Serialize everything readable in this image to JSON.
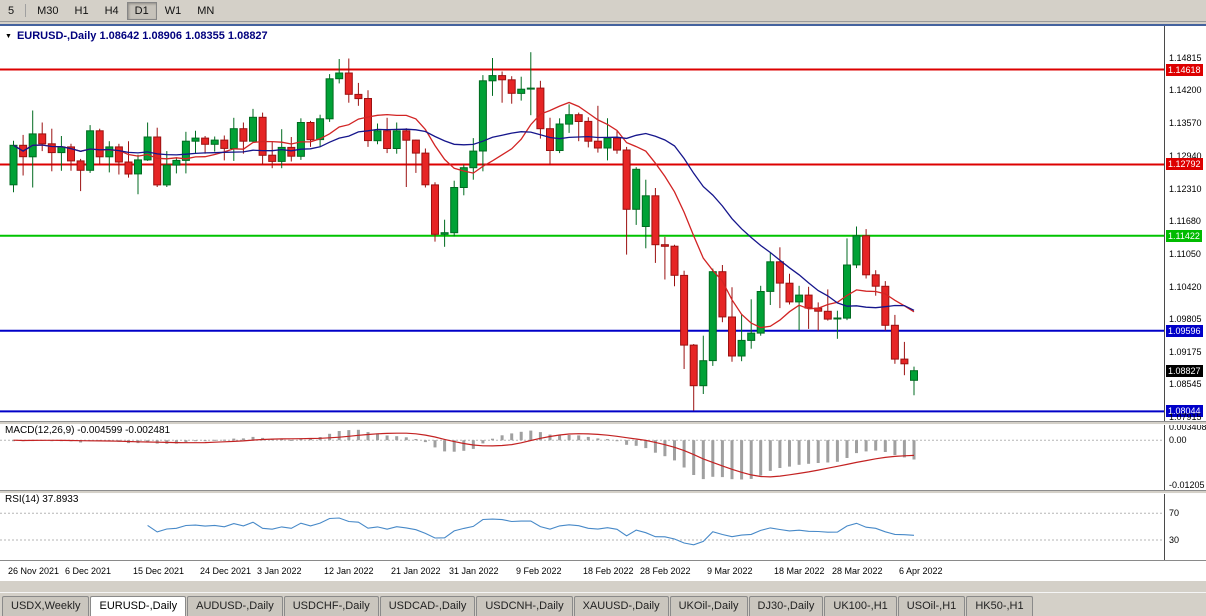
{
  "toolbar": {
    "timeframes": [
      {
        "label": "5",
        "active": false
      },
      {
        "label": "M30",
        "active": false
      },
      {
        "label": "H1",
        "active": false
      },
      {
        "label": "H4",
        "active": false
      },
      {
        "label": "D1",
        "active": true
      },
      {
        "label": "W1",
        "active": false
      },
      {
        "label": "MN",
        "active": false
      }
    ]
  },
  "chart_window": {
    "title": "EURUSD-,Daily  1.08642 1.08906 1.08355 1.08827",
    "menu_icon": "▼"
  },
  "chart_data": {
    "type": "candlestick",
    "symbol": "EURUSD-",
    "period": "Daily",
    "ohlc_display": {
      "open": 1.08642,
      "high": 1.08906,
      "low": 1.08355,
      "close": 1.08827
    },
    "colors": {
      "up_fill": "#00a136",
      "up_stroke": "#006b20",
      "down_fill": "#e62525",
      "down_stroke": "#9b1111",
      "histogram": "#a0a0a0",
      "macd_signal": "#c32222",
      "rsi_line": "#4789c8"
    },
    "price_axis": {
      "max": 1.1507,
      "min": 1.0786,
      "labels": [
        {
          "text": "1.14815",
          "value": 1.14815
        },
        {
          "text": "1.14618",
          "value": 1.14618,
          "bg": "#dd0000"
        },
        {
          "text": "1.14200",
          "value": 1.142
        },
        {
          "text": "1.13570",
          "value": 1.1357
        },
        {
          "text": "1.12940",
          "value": 1.1294
        },
        {
          "text": "1.12792",
          "value": 1.12792,
          "bg": "#dd0000"
        },
        {
          "text": "1.12310",
          "value": 1.1231
        },
        {
          "text": "1.11680",
          "value": 1.1168
        },
        {
          "text": "1.11422",
          "value": 1.11422,
          "bg": "#00bb00"
        },
        {
          "text": "1.11050",
          "value": 1.1105
        },
        {
          "text": "1.10420",
          "value": 1.1042
        },
        {
          "text": "1.09805",
          "value": 1.09805
        },
        {
          "text": "1.09596",
          "value": 1.09596,
          "bg": "#0000c8"
        },
        {
          "text": "1.09175",
          "value": 1.09175
        },
        {
          "text": "1.08827",
          "value": 1.08827,
          "bg": "#000000"
        },
        {
          "text": "1.08545",
          "value": 1.08545
        },
        {
          "text": "1.08044",
          "value": 1.08044,
          "bg": "#0000c8"
        },
        {
          "text": "1.07915",
          "value": 1.07915
        }
      ]
    },
    "levels": [
      {
        "price": 1.14618,
        "color": "#dd0000"
      },
      {
        "price": 1.12792,
        "color": "#dd0000"
      },
      {
        "price": 1.11422,
        "color": "#00c400"
      },
      {
        "price": 1.09596,
        "color": "#0000c8"
      },
      {
        "price": 1.08044,
        "color": "#0000c8"
      }
    ],
    "moving_averages": [
      {
        "period": 10,
        "color": "#d22424"
      },
      {
        "period": 21,
        "color": "#16168c"
      }
    ],
    "candles": [
      [
        1.124,
        1.1325,
        1.1226,
        1.1316
      ],
      [
        1.1316,
        1.1336,
        1.1258,
        1.1294
      ],
      [
        1.1294,
        1.1383,
        1.1235,
        1.1338
      ],
      [
        1.1338,
        1.136,
        1.1305,
        1.1319
      ],
      [
        1.1319,
        1.1348,
        1.1266,
        1.1302
      ],
      [
        1.1302,
        1.1334,
        1.1267,
        1.1313
      ],
      [
        1.1313,
        1.1319,
        1.1267,
        1.1286
      ],
      [
        1.1286,
        1.129,
        1.1228,
        1.1268
      ],
      [
        1.1268,
        1.1355,
        1.1263,
        1.1344
      ],
      [
        1.1344,
        1.1348,
        1.128,
        1.1294
      ],
      [
        1.1294,
        1.1324,
        1.1264,
        1.1313
      ],
      [
        1.1313,
        1.1319,
        1.126,
        1.1284
      ],
      [
        1.1284,
        1.1324,
        1.1254,
        1.1261
      ],
      [
        1.1261,
        1.1298,
        1.1222,
        1.1288
      ],
      [
        1.1288,
        1.136,
        1.1286,
        1.1332
      ],
      [
        1.1332,
        1.135,
        1.1236,
        1.124
      ],
      [
        1.124,
        1.1305,
        1.1236,
        1.1278
      ],
      [
        1.1278,
        1.1293,
        1.1262,
        1.1287
      ],
      [
        1.1287,
        1.1342,
        1.1262,
        1.1324
      ],
      [
        1.1324,
        1.1344,
        1.13,
        1.133
      ],
      [
        1.133,
        1.1334,
        1.13,
        1.1318
      ],
      [
        1.1318,
        1.1333,
        1.1304,
        1.1326
      ],
      [
        1.1326,
        1.1335,
        1.1287,
        1.131
      ],
      [
        1.131,
        1.1369,
        1.1286,
        1.1348
      ],
      [
        1.1348,
        1.136,
        1.13,
        1.1324
      ],
      [
        1.1324,
        1.1386,
        1.1321,
        1.137
      ],
      [
        1.137,
        1.1379,
        1.1279,
        1.1297
      ],
      [
        1.1297,
        1.1323,
        1.1272,
        1.1285
      ],
      [
        1.1285,
        1.1347,
        1.1272,
        1.1312
      ],
      [
        1.1312,
        1.1332,
        1.1285,
        1.1295
      ],
      [
        1.1295,
        1.1368,
        1.1288,
        1.136
      ],
      [
        1.136,
        1.1363,
        1.1313,
        1.1327
      ],
      [
        1.1327,
        1.1375,
        1.1314,
        1.1367
      ],
      [
        1.1367,
        1.1453,
        1.1361,
        1.1444
      ],
      [
        1.1444,
        1.1482,
        1.1435,
        1.1455
      ],
      [
        1.1455,
        1.1483,
        1.1398,
        1.1414
      ],
      [
        1.1414,
        1.1436,
        1.1392,
        1.1406
      ],
      [
        1.1406,
        1.1422,
        1.1313,
        1.1325
      ],
      [
        1.1325,
        1.1358,
        1.1318,
        1.1344
      ],
      [
        1.1344,
        1.1369,
        1.1301,
        1.131
      ],
      [
        1.131,
        1.136,
        1.13,
        1.1344
      ],
      [
        1.1344,
        1.1349,
        1.1236,
        1.1326
      ],
      [
        1.1326,
        1.1327,
        1.1263,
        1.1301
      ],
      [
        1.1301,
        1.131,
        1.1235,
        1.124
      ],
      [
        1.124,
        1.1245,
        1.1131,
        1.1145
      ],
      [
        1.1145,
        1.1173,
        1.1121,
        1.1148
      ],
      [
        1.1148,
        1.1248,
        1.1141,
        1.1235
      ],
      [
        1.1235,
        1.1279,
        1.122,
        1.1273
      ],
      [
        1.1273,
        1.133,
        1.125,
        1.1305
      ],
      [
        1.1305,
        1.1451,
        1.1266,
        1.144
      ],
      [
        1.144,
        1.1484,
        1.1411,
        1.145
      ],
      [
        1.145,
        1.1458,
        1.1398,
        1.1442
      ],
      [
        1.1442,
        1.1449,
        1.1396,
        1.1416
      ],
      [
        1.1416,
        1.1448,
        1.1402,
        1.1424
      ],
      [
        1.1424,
        1.1495,
        1.1374,
        1.1426
      ],
      [
        1.1426,
        1.144,
        1.1329,
        1.1348
      ],
      [
        1.1348,
        1.1369,
        1.1278,
        1.1306
      ],
      [
        1.1306,
        1.1368,
        1.1301,
        1.1357
      ],
      [
        1.1357,
        1.1395,
        1.134,
        1.1375
      ],
      [
        1.1375,
        1.1379,
        1.1324,
        1.1362
      ],
      [
        1.1362,
        1.137,
        1.1312,
        1.1324
      ],
      [
        1.1324,
        1.1392,
        1.1302,
        1.1311
      ],
      [
        1.1311,
        1.1368,
        1.1287,
        1.133
      ],
      [
        1.133,
        1.1344,
        1.13,
        1.1307
      ],
      [
        1.1307,
        1.1313,
        1.1106,
        1.1193
      ],
      [
        1.1193,
        1.1274,
        1.1163,
        1.127
      ],
      [
        1.116,
        1.125,
        1.1118,
        1.1219
      ],
      [
        1.1219,
        1.1234,
        1.109,
        1.1125
      ],
      [
        1.1125,
        1.114,
        1.1058,
        1.1122
      ],
      [
        1.1122,
        1.1125,
        1.1045,
        1.1066
      ],
      [
        1.1066,
        1.1075,
        1.0886,
        1.0932
      ],
      [
        1.0932,
        1.0934,
        1.0806,
        1.0854
      ],
      [
        1.0854,
        1.095,
        1.0838,
        1.0902
      ],
      [
        1.0902,
        1.1079,
        1.0892,
        1.1073
      ],
      [
        1.1073,
        1.1086,
        1.0976,
        1.0986
      ],
      [
        1.0986,
        1.1043,
        1.09,
        1.0911
      ],
      [
        1.0911,
        1.0992,
        1.0901,
        1.0941
      ],
      [
        1.0941,
        1.102,
        1.0925,
        1.0955
      ],
      [
        1.0955,
        1.1046,
        1.095,
        1.1035
      ],
      [
        1.1035,
        1.1109,
        1.1009,
        1.1092
      ],
      [
        1.1092,
        1.112,
        1.1003,
        1.1051
      ],
      [
        1.1051,
        1.1069,
        1.101,
        1.1015
      ],
      [
        1.1015,
        1.1046,
        1.0961,
        1.1028
      ],
      [
        1.1028,
        1.1044,
        1.0963,
        1.1003
      ],
      [
        1.1003,
        1.1014,
        1.096,
        1.0997
      ],
      [
        1.0997,
        1.1039,
        1.0979,
        1.0982
      ],
      [
        1.0982,
        1.0998,
        1.0944,
        1.0984
      ],
      [
        1.0984,
        1.1137,
        1.098,
        1.1086
      ],
      [
        1.1086,
        1.116,
        1.108,
        1.1142
      ],
      [
        1.1142,
        1.1155,
        1.106,
        1.1067
      ],
      [
        1.1067,
        1.1076,
        1.1027,
        1.1045
      ],
      [
        1.1045,
        1.1055,
        1.096,
        1.097
      ],
      [
        1.097,
        1.099,
        1.0896,
        1.0905
      ],
      [
        1.0905,
        1.0938,
        1.0874,
        1.0896
      ],
      [
        1.08642,
        1.08906,
        1.08355,
        1.08827
      ]
    ],
    "date_axis": [
      {
        "label": "26 Nov 2021",
        "bar": 0
      },
      {
        "label": "6 Dec 2021",
        "bar": 6
      },
      {
        "label": "15 Dec 2021",
        "bar": 13
      },
      {
        "label": "24 Dec 2021",
        "bar": 20
      },
      {
        "label": "3 Jan 2022",
        "bar": 26
      },
      {
        "label": "12 Jan 2022",
        "bar": 33
      },
      {
        "label": "21 Jan 2022",
        "bar": 40
      },
      {
        "label": "31 Jan 2022",
        "bar": 46
      },
      {
        "label": "9 Feb 2022",
        "bar": 53
      },
      {
        "label": "18 Feb 2022",
        "bar": 60
      },
      {
        "label": "28 Feb 2022",
        "bar": 66
      },
      {
        "label": "9 Mar 2022",
        "bar": 73
      },
      {
        "label": "18 Mar 2022",
        "bar": 80
      },
      {
        "label": "28 Mar 2022",
        "bar": 86
      },
      {
        "label": "6 Apr 2022",
        "bar": 93
      }
    ],
    "macd": {
      "label": "MACD(12,26,9) -0.004599 -0.002481",
      "fast": 12,
      "slow": 26,
      "signal": 9,
      "value": -0.004599,
      "signal_value": -0.002481,
      "axis": [
        {
          "text": "0.003408",
          "value": 0.003408
        },
        {
          "text": "0.00",
          "value": 0
        },
        {
          "text": "-0.01205",
          "value": -0.01205
        }
      ]
    },
    "rsi": {
      "label": "RSI(14) 37.8933",
      "period": 14,
      "value": 37.8933,
      "levels": [
        70,
        30
      ]
    }
  },
  "tab_bar": {
    "tabs": [
      {
        "label": "USDX,Weekly",
        "active": false
      },
      {
        "label": "EURUSD-,Daily",
        "active": true
      },
      {
        "label": "AUDUSD-,Daily",
        "active": false
      },
      {
        "label": "USDCHF-,Daily",
        "active": false
      },
      {
        "label": "USDCAD-,Daily",
        "active": false
      },
      {
        "label": "USDCNH-,Daily",
        "active": false
      },
      {
        "label": "XAUUSD-,Daily",
        "active": false
      },
      {
        "label": "UKOil-,Daily",
        "active": false
      },
      {
        "label": "DJ30-,Daily",
        "active": false
      },
      {
        "label": "UK100-,H1",
        "active": false
      },
      {
        "label": "USOil-,H1",
        "active": false
      },
      {
        "label": "HK50-,H1",
        "active": false
      }
    ]
  }
}
